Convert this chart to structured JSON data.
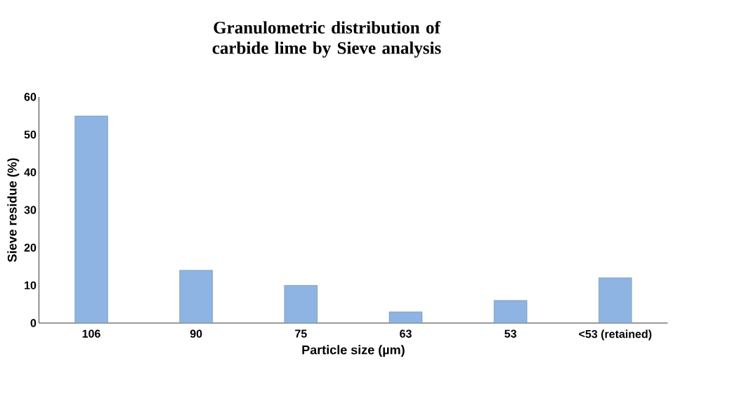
{
  "chart_data": {
    "type": "bar",
    "title": "Granulometric distribution of carbide lime by Sieve analysis",
    "xlabel": "Particle size (µm)",
    "ylabel": "Sieve residue (%)",
    "categories": [
      "106",
      "90",
      "75",
      "63",
      "53",
      "<53 (retained)"
    ],
    "values": [
      55,
      14,
      10,
      3,
      6,
      12
    ],
    "color": "#8db4e2",
    "ylim": [
      0,
      60
    ],
    "yticks": [
      0,
      10,
      20,
      30,
      40,
      50,
      60
    ],
    "grid": false
  }
}
